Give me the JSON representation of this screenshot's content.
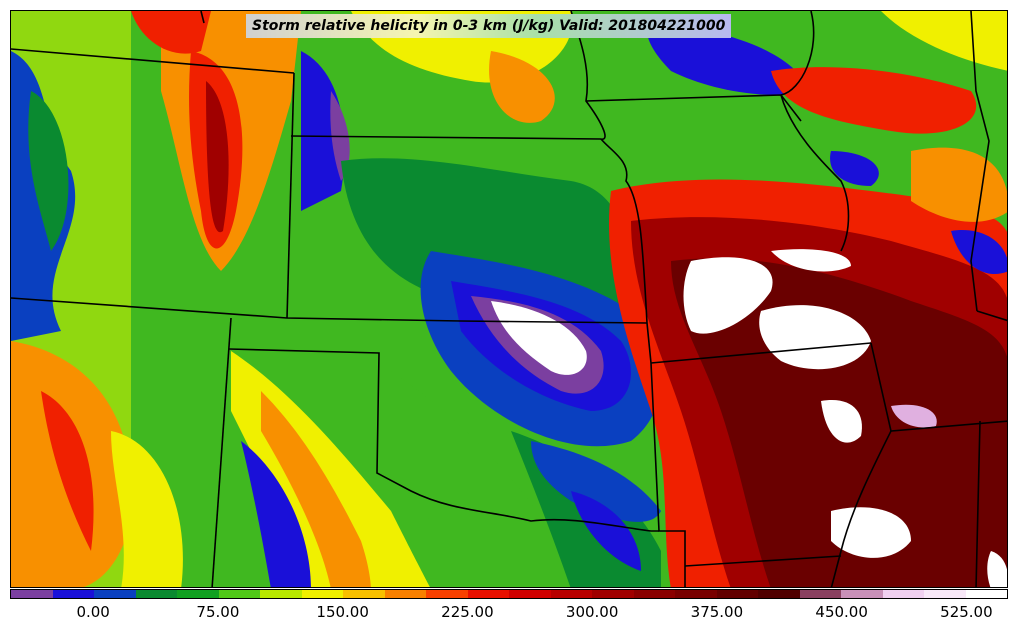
{
  "title": "Storm relative helicity in 0-3 km (J/kg) Valid: 201804221000",
  "colorbar": {
    "colors": [
      "#7b3fa0",
      "#1a10d8",
      "#0a40c0",
      "#0a8a30",
      "#10a020",
      "#50c818",
      "#b8e800",
      "#f0f000",
      "#f8c000",
      "#f88000",
      "#f84000",
      "#e81000",
      "#d00000",
      "#b80000",
      "#a00000",
      "#8a0000",
      "#780000",
      "#620000",
      "#500000",
      "#8a4060",
      "#c890b8",
      "#f0d0f0",
      "#f8e8f8",
      "#ffffff"
    ],
    "ticks": [
      {
        "label": "0.00",
        "value": 0
      },
      {
        "label": "75.00",
        "value": 75
      },
      {
        "label": "150.00",
        "value": 150
      },
      {
        "label": "225.00",
        "value": 225
      },
      {
        "label": "300.00",
        "value": 300
      },
      {
        "label": "375.00",
        "value": 375
      },
      {
        "label": "450.00",
        "value": 450
      },
      {
        "label": "525.00",
        "value": 525
      }
    ],
    "min": -50,
    "max": 550
  },
  "palette": {
    "purple": "#7b3fa0",
    "blue": "#1a10d8",
    "mid_blue": "#0a40c0",
    "dark_green": "#0a8a30",
    "green": "#40b820",
    "light_green": "#90d810",
    "yellow": "#f0f000",
    "orange": "#f89000",
    "red": "#f02000",
    "dark_red": "#a00000",
    "maroon": "#6a0000",
    "pink": "#e0b0e0",
    "white": "#ffffff"
  }
}
